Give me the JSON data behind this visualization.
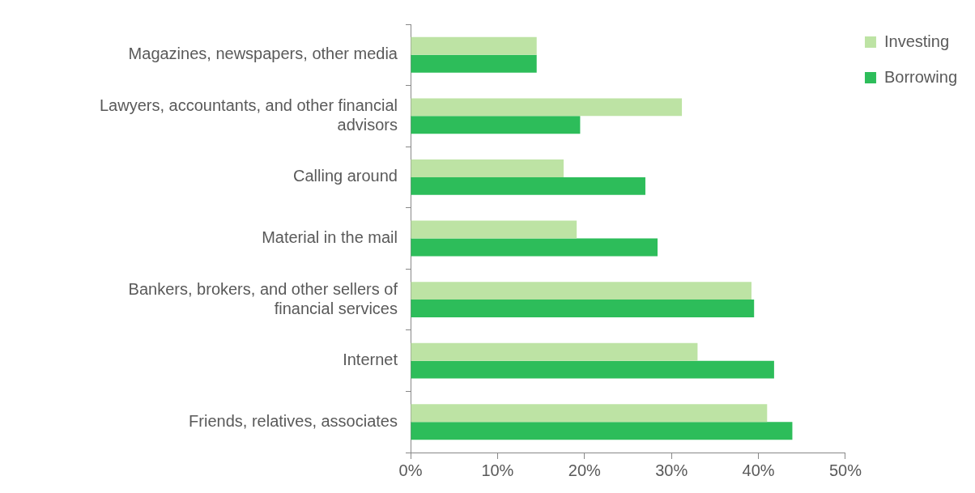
{
  "chart_data": {
    "type": "bar",
    "orientation": "horizontal",
    "categories": [
      "Magazines, newspapers, other media",
      "Lawyers, accountants, and other financial advisors",
      "Calling around",
      "Material in the mail",
      "Bankers, brokers, and other sellers of financial services",
      "Internet",
      "Friends, relatives, associates"
    ],
    "series": [
      {
        "name": "Investing",
        "color": "#bde3a4",
        "values": [
          14.5,
          31.2,
          17.6,
          19.1,
          39.2,
          33.0,
          41.0
        ]
      },
      {
        "name": "Borrowing",
        "color": "#2dbd5a",
        "values": [
          14.5,
          19.5,
          27.0,
          28.4,
          39.5,
          41.8,
          43.9
        ]
      }
    ],
    "xlim": [
      0,
      50
    ],
    "xticks": [
      {
        "value": 0,
        "label": "0%"
      },
      {
        "value": 10,
        "label": "10%"
      },
      {
        "value": 20,
        "label": "20%"
      },
      {
        "value": 30,
        "label": "30%"
      },
      {
        "value": 40,
        "label": "40%"
      },
      {
        "value": 50,
        "label": "50%"
      }
    ],
    "grid": false,
    "legend": "right"
  }
}
